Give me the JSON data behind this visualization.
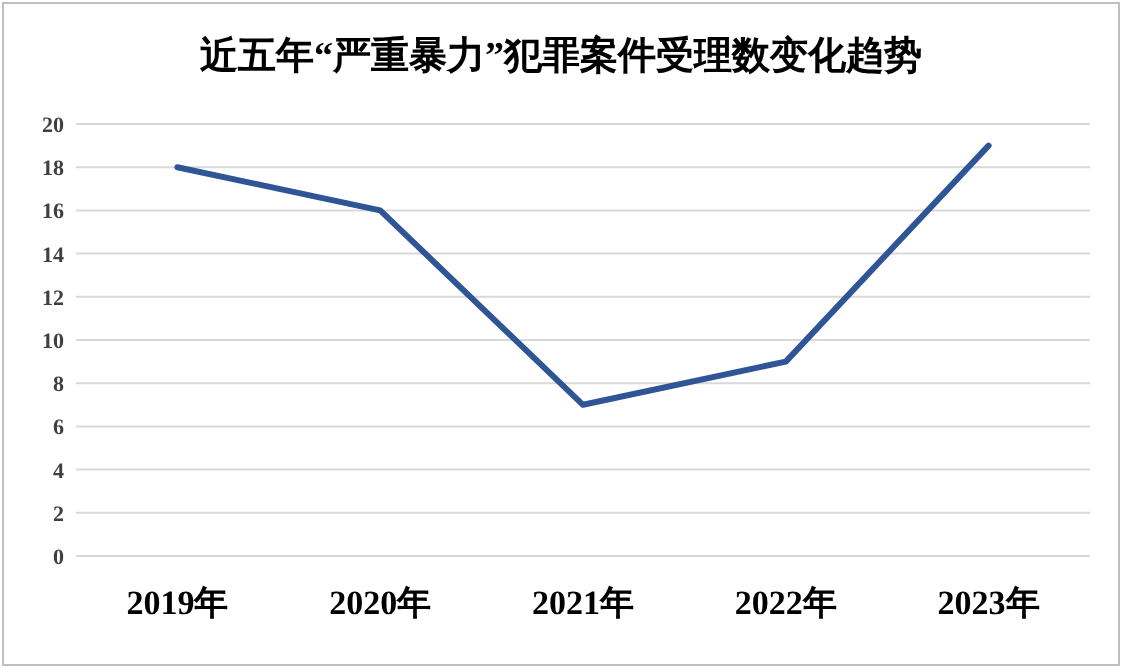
{
  "chart_data": {
    "type": "line",
    "title": "近五年“严重暴力”犯罪案件受理数变化趋势",
    "categories": [
      "2019年",
      "2020年",
      "2021年",
      "2022年",
      "2023年"
    ],
    "values": [
      18,
      16,
      7,
      9,
      19
    ],
    "color": "#2f5597",
    "ylim": [
      0,
      20
    ],
    "yticks": [
      0,
      2,
      4,
      6,
      8,
      10,
      12,
      14,
      16,
      18,
      20
    ],
    "grid": "y"
  }
}
